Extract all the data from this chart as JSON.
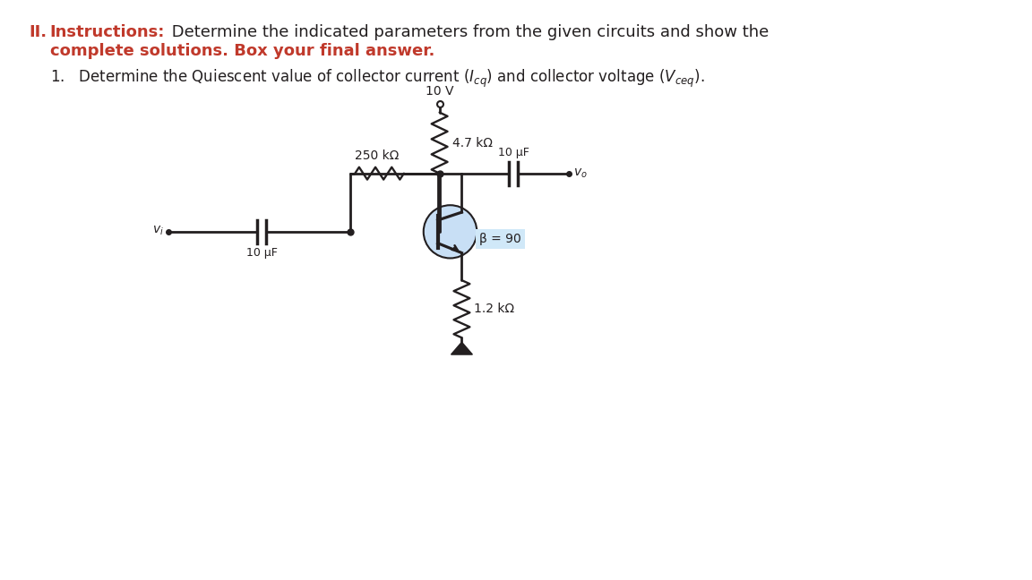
{
  "vcc_label": "10 V",
  "rc_label": "4.7 kΩ",
  "rb_label": "250 kΩ",
  "re_label": "1.2 kΩ",
  "cap1_label": "10 μF",
  "cap2_label": "10 μF",
  "beta_label": "β = 90",
  "bg_color": "#ffffff",
  "text_color_red": "#c0392b",
  "text_color_black": "#231f20",
  "circuit_color": "#231f20",
  "instructions_bold": "Instructions:",
  "instructions_rest": " Determine the indicated parameters from the given circuits and show the",
  "instructions_line2": "complete solutions. Box your final answer.",
  "subtitle_pre": "1.   Determine the Quiescent value of collector current (",
  "subtitle_post": ") and collector voltage (",
  "subtitle_end": ").",
  "roman": "II.",
  "title_fontsize": 13,
  "sub_fontsize": 12,
  "circuit_lw": 2.0
}
